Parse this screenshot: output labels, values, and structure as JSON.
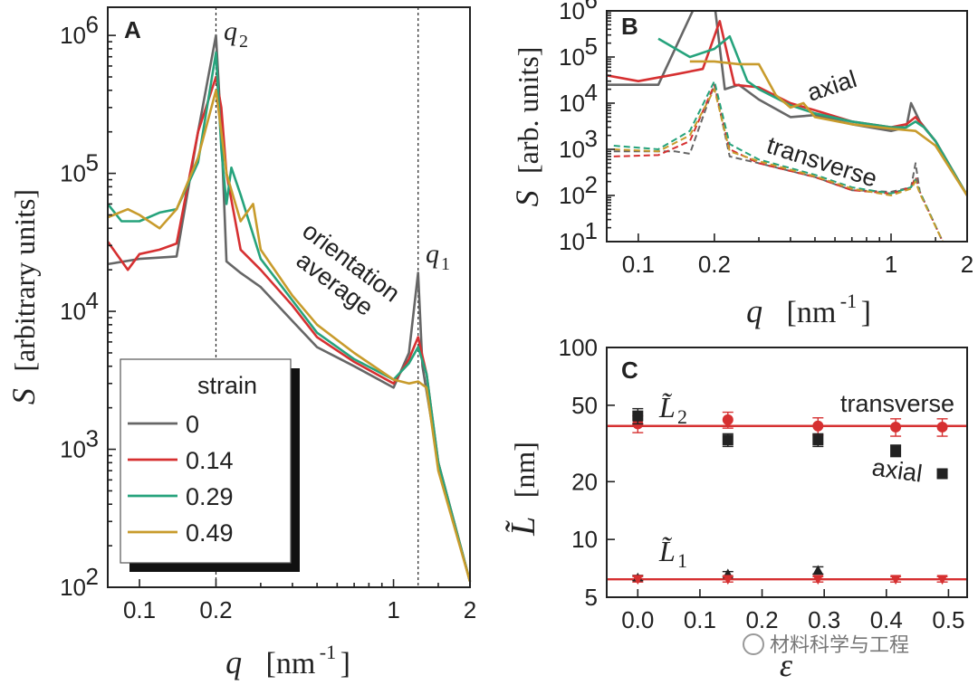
{
  "watermark": "材料科学与工程",
  "chart_data": [
    {
      "panel": "A",
      "type": "line",
      "x_scale": "log",
      "y_scale": "log",
      "xlabel_var": "q",
      "xlabel_unit": "[nm",
      "xlabel_exp": "-1",
      "xlabel_close": "]",
      "ylabel_var": "S",
      "ylabel_text": "[arbitrary units]",
      "xlim": [
        0.075,
        2
      ],
      "ylim": [
        100,
        1600000
      ],
      "x_ticks": [
        {
          "v": 0.1,
          "label": "0.1"
        },
        {
          "v": 0.2,
          "label": "0.2"
        },
        {
          "v": 1,
          "label": "1"
        },
        {
          "v": 2,
          "label": "2"
        }
      ],
      "y_ticks": [
        {
          "v": 100,
          "label": "10",
          "exp": "2"
        },
        {
          "v": 1000,
          "label": "10",
          "exp": "3"
        },
        {
          "v": 10000,
          "label": "10",
          "exp": "4"
        },
        {
          "v": 100000,
          "label": "10",
          "exp": "5"
        },
        {
          "v": 1000000,
          "label": "10",
          "exp": "6"
        }
      ],
      "vlines": [
        {
          "x": 0.2,
          "label": "q",
          "sub": "2"
        },
        {
          "x": 1.25,
          "label": "q",
          "sub": "1"
        }
      ],
      "annotation_lines": [
        "orientation",
        "average"
      ],
      "legend": {
        "title": "strain",
        "position": "lower-left"
      },
      "series": [
        {
          "name": "0",
          "color": "#666666",
          "x": [
            0.075,
            0.1,
            0.14,
            0.17,
            0.2,
            0.21,
            0.22,
            0.25,
            0.3,
            0.4,
            0.5,
            0.7,
            1.0,
            1.15,
            1.25,
            1.3,
            1.5,
            2.0
          ],
          "y": [
            22000,
            24000,
            25000,
            200000,
            1000000,
            200000,
            23000,
            19000,
            15000,
            8500,
            5500,
            4000,
            2800,
            5000,
            19000,
            4000,
            800,
            110
          ]
        },
        {
          "name": "0.14",
          "color": "#d63031",
          "x": [
            0.075,
            0.09,
            0.1,
            0.12,
            0.14,
            0.17,
            0.2,
            0.21,
            0.22,
            0.25,
            0.3,
            0.4,
            0.5,
            0.7,
            1.0,
            1.15,
            1.25,
            1.35,
            1.5,
            2.0
          ],
          "y": [
            32000,
            20000,
            26000,
            28000,
            31000,
            200000,
            500000,
            300000,
            100000,
            28000,
            20000,
            11000,
            6500,
            4300,
            3000,
            4500,
            6500,
            3500,
            800,
            110
          ]
        },
        {
          "name": "0.29",
          "color": "#26a37c",
          "x": [
            0.075,
            0.085,
            0.1,
            0.12,
            0.14,
            0.17,
            0.2,
            0.21,
            0.22,
            0.23,
            0.25,
            0.3,
            0.4,
            0.5,
            0.7,
            1.0,
            1.15,
            1.25,
            1.35,
            1.5,
            2.0
          ],
          "y": [
            60000,
            45000,
            45000,
            52000,
            55000,
            120000,
            750000,
            150000,
            60000,
            110000,
            70000,
            24000,
            12000,
            7000,
            4500,
            3200,
            4200,
            5500,
            3500,
            800,
            110
          ]
        },
        {
          "name": "0.49",
          "color": "#c89b2c",
          "x": [
            0.075,
            0.09,
            0.1,
            0.12,
            0.14,
            0.17,
            0.2,
            0.21,
            0.22,
            0.25,
            0.28,
            0.3,
            0.4,
            0.5,
            0.7,
            1.0,
            1.15,
            1.25,
            1.35,
            1.5,
            2.0
          ],
          "y": [
            48000,
            55000,
            50000,
            40000,
            55000,
            130000,
            400000,
            200000,
            100000,
            45000,
            60000,
            28000,
            13000,
            8000,
            5000,
            3200,
            3000,
            3100,
            2800,
            700,
            110
          ]
        }
      ]
    },
    {
      "panel": "B",
      "type": "line",
      "x_scale": "log",
      "y_scale": "log",
      "xlabel_var": "q",
      "xlabel_unit": "[nm",
      "xlabel_exp": "-1",
      "xlabel_close": "]",
      "ylabel_var": "S",
      "ylabel_text": "[arb. units]",
      "xlim": [
        0.075,
        2
      ],
      "ylim": [
        10,
        1000000
      ],
      "x_ticks": [
        {
          "v": 0.1,
          "label": "0.1"
        },
        {
          "v": 0.2,
          "label": "0.2"
        },
        {
          "v": 1,
          "label": "1"
        },
        {
          "v": 2,
          "label": "2"
        }
      ],
      "y_ticks": [
        {
          "v": 10,
          "label": "10",
          "exp": "1"
        },
        {
          "v": 100,
          "label": "10",
          "exp": "2"
        },
        {
          "v": 1000,
          "label": "10",
          "exp": "3"
        },
        {
          "v": 10000,
          "label": "10",
          "exp": "4"
        },
        {
          "v": 100000,
          "label": "10",
          "exp": "5"
        },
        {
          "v": 1000000,
          "label": "10",
          "exp": "6"
        }
      ],
      "annotations": [
        "axial",
        "transverse"
      ],
      "series": [
        {
          "group": "axial",
          "style": "solid",
          "color": "#666666",
          "x": [
            0.075,
            0.12,
            0.17,
            0.2,
            0.22,
            0.25,
            0.3,
            0.4,
            0.5,
            0.7,
            1.0,
            1.15,
            1.2,
            1.3,
            1.5,
            2.0
          ],
          "y": [
            25000,
            25000,
            1500000,
            1500000,
            20000,
            25000,
            12000,
            5000,
            5500,
            3500,
            2500,
            3000,
            10000,
            4000,
            1500,
            100
          ]
        },
        {
          "group": "axial",
          "style": "solid",
          "color": "#d63031",
          "x": [
            0.075,
            0.1,
            0.14,
            0.18,
            0.21,
            0.24,
            0.3,
            0.4,
            0.5,
            0.7,
            1.0,
            1.15,
            1.25,
            1.35,
            1.5,
            2.0
          ],
          "y": [
            40000,
            30000,
            42000,
            55000,
            600000,
            25000,
            22000,
            10000,
            7000,
            4000,
            3000,
            3500,
            5000,
            3000,
            1500,
            100
          ]
        },
        {
          "group": "axial",
          "style": "solid",
          "color": "#26a37c",
          "x": [
            0.12,
            0.16,
            0.2,
            0.23,
            0.27,
            0.3,
            0.4,
            0.5,
            0.7,
            1.0,
            1.15,
            1.25,
            1.35,
            1.5,
            2.0
          ],
          "y": [
            250000,
            100000,
            150000,
            280000,
            30000,
            20000,
            9000,
            6000,
            4000,
            3000,
            3000,
            4000,
            3000,
            1500,
            100
          ]
        },
        {
          "group": "axial",
          "style": "solid",
          "color": "#c89b2c",
          "x": [
            0.16,
            0.2,
            0.25,
            0.3,
            0.35,
            0.4,
            0.45,
            0.5,
            0.7,
            1.0,
            1.25,
            1.5,
            2.0
          ],
          "y": [
            80000,
            80000,
            70000,
            70000,
            15000,
            8000,
            10000,
            5000,
            3500,
            2800,
            2500,
            1200,
            100
          ]
        },
        {
          "group": "transverse",
          "style": "dash",
          "color": "#666666",
          "x": [
            0.08,
            0.14,
            0.16,
            0.2,
            0.23,
            0.3,
            0.5,
            0.7,
            1.0,
            1.2,
            1.25,
            1.3,
            1.6
          ],
          "y": [
            900,
            900,
            800,
            25000,
            700,
            500,
            250,
            130,
            120,
            150,
            500,
            120,
            10
          ]
        },
        {
          "group": "transverse",
          "style": "dash",
          "color": "#d63031",
          "x": [
            0.08,
            0.12,
            0.16,
            0.2,
            0.23,
            0.3,
            0.5,
            0.7,
            1.0,
            1.2,
            1.25,
            1.3,
            1.6
          ],
          "y": [
            700,
            750,
            1500,
            25000,
            1000,
            500,
            250,
            130,
            110,
            150,
            250,
            120,
            10
          ]
        },
        {
          "group": "transverse",
          "style": "dash",
          "color": "#26a37c",
          "x": [
            0.08,
            0.12,
            0.16,
            0.2,
            0.23,
            0.3,
            0.5,
            0.7,
            1.0,
            1.2,
            1.25,
            1.3,
            1.6
          ],
          "y": [
            1200,
            1000,
            2500,
            30000,
            1300,
            600,
            280,
            150,
            110,
            150,
            220,
            120,
            10
          ]
        },
        {
          "group": "transverse",
          "style": "dash",
          "color": "#c89b2c",
          "x": [
            0.08,
            0.12,
            0.16,
            0.2,
            0.23,
            0.3,
            0.5,
            0.7,
            1.0,
            1.2,
            1.25,
            1.3,
            1.6
          ],
          "y": [
            1000,
            900,
            2000,
            20000,
            900,
            550,
            260,
            140,
            100,
            140,
            200,
            110,
            10
          ]
        }
      ]
    },
    {
      "panel": "C",
      "type": "scatter",
      "x_scale": "linear",
      "y_scale": "log",
      "xlabel_var": "ε",
      "ylabel_var": "L̃",
      "ylabel_text": "[nm]",
      "xlim": [
        -0.05,
        0.53
      ],
      "ylim": [
        5,
        100
      ],
      "x_ticks": [
        {
          "v": 0.0,
          "label": "0.0"
        },
        {
          "v": 0.1,
          "label": "0.1"
        },
        {
          "v": 0.2,
          "label": "0.2"
        },
        {
          "v": 0.3,
          "label": "0.3"
        },
        {
          "v": 0.4,
          "label": "0.4"
        },
        {
          "v": 0.5,
          "label": "0.5"
        }
      ],
      "y_ticks": [
        {
          "v": 5,
          "label": "5"
        },
        {
          "v": 10,
          "label": "10"
        },
        {
          "v": 20,
          "label": "20"
        },
        {
          "v": 50,
          "label": "50"
        },
        {
          "v": 100,
          "label": "100"
        }
      ],
      "annotations": [
        "transverse",
        "axial"
      ],
      "group_labels": [
        {
          "var": "L̃",
          "sub": "2",
          "y": 39
        },
        {
          "var": "L̃",
          "sub": "1",
          "y": 6.2
        }
      ],
      "hlines": [
        {
          "y": 39,
          "color": "#d63031"
        },
        {
          "y": 6.2,
          "color": "#d63031"
        }
      ],
      "series": [
        {
          "marker": "circle",
          "color": "#d63031",
          "x": [
            0.0,
            0.145,
            0.29,
            0.415,
            0.49
          ],
          "y": [
            40,
            42,
            39,
            38.5,
            38.5
          ],
          "err": [
            4,
            4,
            4,
            4,
            4
          ]
        },
        {
          "marker": "square",
          "color": "#222222",
          "x": [
            0.0,
            0.145,
            0.29,
            0.415,
            0.49
          ],
          "y": [
            44,
            33,
            33,
            29,
            22
          ],
          "err": [
            4,
            2.5,
            2.5,
            2,
            1
          ]
        },
        {
          "marker": "triangle-up",
          "color": "#222222",
          "x": [
            0.0,
            0.145,
            0.29
          ],
          "y": [
            6.3,
            6.6,
            6.9
          ],
          "err": [
            0.2,
            0.2,
            0.3
          ]
        },
        {
          "marker": "triangle-down",
          "color": "#d63031",
          "x": [
            0.0,
            0.145,
            0.29,
            0.415,
            0.49
          ],
          "y": [
            6.2,
            6.2,
            6.2,
            6.2,
            6.2
          ],
          "err": [
            0.2,
            0.2,
            0.2,
            0.2,
            0.2
          ]
        }
      ]
    }
  ]
}
